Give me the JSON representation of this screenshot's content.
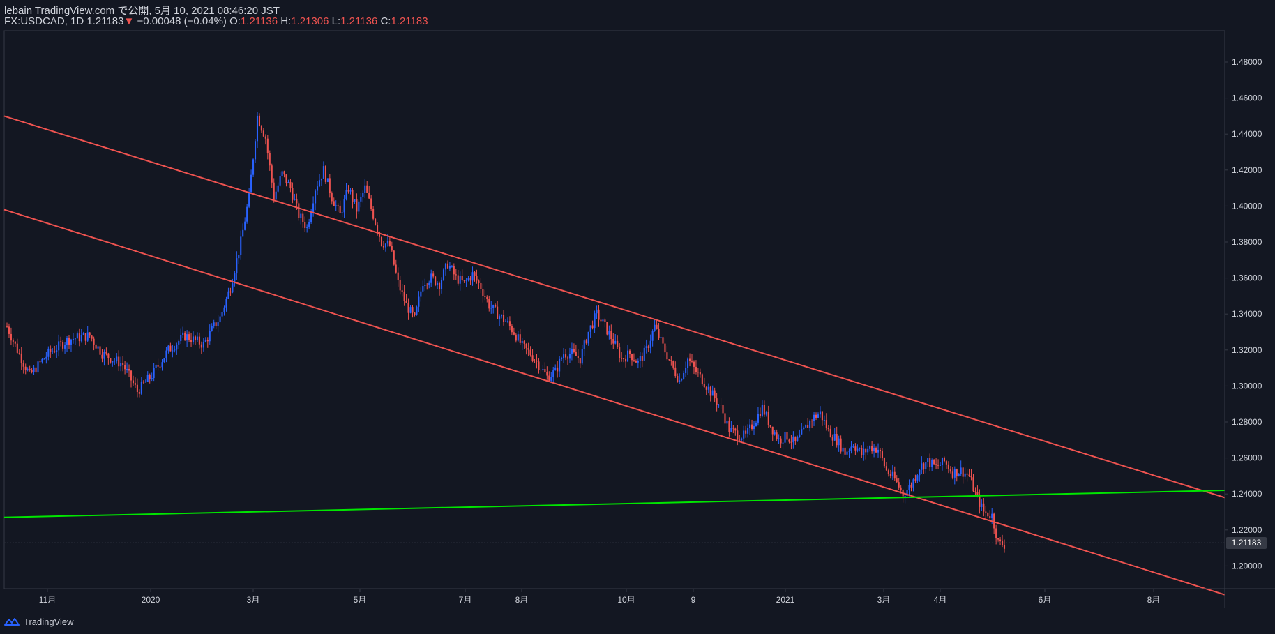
{
  "header": {
    "publish_line": "lebain TradingView.com で公開, 5月 10, 2021 08:46:20 JST",
    "symbol": "FX:USDCAD, 1D",
    "last": "1.21183",
    "change_arrow": "▼",
    "change": "−0.00048 (−0.04%)",
    "o_label": "O:",
    "o_value": "1.21136",
    "h_label": "H:",
    "h_value": "1.21306",
    "l_label": "L:",
    "l_value": "1.21136",
    "c_label": "C:",
    "c_value": "1.21183"
  },
  "footer": {
    "brand": "TradingView"
  },
  "colors": {
    "background": "#131722",
    "up": "#2962ff",
    "down": "#ef5350",
    "channel": "#ef5350",
    "support": "#00e600",
    "axis_text": "#d1d4dc"
  },
  "chart_data": {
    "type": "candlestick",
    "yaxis_side": "right",
    "ylim": [
      1.18,
      1.49
    ],
    "y_ticks": [
      "1.48000",
      "1.46000",
      "1.44000",
      "1.42000",
      "1.40000",
      "1.38000",
      "1.36000",
      "1.34000",
      "1.32000",
      "1.30000",
      "1.28000",
      "1.26000",
      "1.24000",
      "1.22000",
      "1.20000"
    ],
    "last_price_label": "1.21183",
    "x_ticks": [
      "11月",
      "2020",
      "3月",
      "5月",
      "7月",
      "8月",
      "10月",
      "9",
      "2021",
      "3月",
      "4月",
      "6月",
      "8月"
    ],
    "trend_lines": [
      {
        "name": "channel-upper",
        "color": "#ef5350",
        "start_price": 1.45,
        "end_price": 1.238
      },
      {
        "name": "channel-lower",
        "color": "#ef5350",
        "start_price": 1.398,
        "end_price": 1.184
      },
      {
        "name": "support",
        "color": "#00e600",
        "start_price": 1.227,
        "end_price": 1.242
      }
    ],
    "close_path": [
      [
        0,
        1.333
      ],
      [
        5,
        1.32
      ],
      [
        11,
        1.306
      ],
      [
        20,
        1.318
      ],
      [
        30,
        1.326
      ],
      [
        40,
        1.328
      ],
      [
        46,
        1.318
      ],
      [
        56,
        1.312
      ],
      [
        63,
        1.297
      ],
      [
        70,
        1.306
      ],
      [
        78,
        1.32
      ],
      [
        86,
        1.328
      ],
      [
        95,
        1.323
      ],
      [
        100,
        1.333
      ],
      [
        103,
        1.338
      ],
      [
        108,
        1.355
      ],
      [
        113,
        1.38
      ],
      [
        117,
        1.405
      ],
      [
        121,
        1.45
      ],
      [
        125,
        1.438
      ],
      [
        129,
        1.405
      ],
      [
        133,
        1.418
      ],
      [
        137,
        1.41
      ],
      [
        141,
        1.395
      ],
      [
        145,
        1.388
      ],
      [
        149,
        1.41
      ],
      [
        153,
        1.42
      ],
      [
        157,
        1.405
      ],
      [
        161,
        1.395
      ],
      [
        165,
        1.41
      ],
      [
        169,
        1.398
      ],
      [
        173,
        1.41
      ],
      [
        177,
        1.395
      ],
      [
        181,
        1.38
      ],
      [
        185,
        1.378
      ],
      [
        189,
        1.357
      ],
      [
        193,
        1.345
      ],
      [
        197,
        1.337
      ],
      [
        201,
        1.358
      ],
      [
        205,
        1.36
      ],
      [
        209,
        1.357
      ],
      [
        213,
        1.368
      ],
      [
        217,
        1.36
      ],
      [
        221,
        1.357
      ],
      [
        225,
        1.362
      ],
      [
        229,
        1.355
      ],
      [
        233,
        1.345
      ],
      [
        237,
        1.34
      ],
      [
        241,
        1.336
      ],
      [
        245,
        1.33
      ],
      [
        249,
        1.322
      ],
      [
        253,
        1.318
      ],
      [
        257,
        1.312
      ],
      [
        261,
        1.305
      ],
      [
        265,
        1.308
      ],
      [
        269,
        1.318
      ],
      [
        273,
        1.318
      ],
      [
        277,
        1.315
      ],
      [
        281,
        1.33
      ],
      [
        285,
        1.34
      ],
      [
        289,
        1.333
      ],
      [
        293,
        1.325
      ],
      [
        297,
        1.315
      ],
      [
        301,
        1.318
      ],
      [
        305,
        1.313
      ],
      [
        309,
        1.32
      ],
      [
        313,
        1.333
      ],
      [
        317,
        1.322
      ],
      [
        321,
        1.312
      ],
      [
        325,
        1.303
      ],
      [
        329,
        1.315
      ],
      [
        333,
        1.308
      ],
      [
        337,
        1.302
      ],
      [
        341,
        1.295
      ],
      [
        345,
        1.288
      ],
      [
        349,
        1.276
      ],
      [
        353,
        1.273
      ],
      [
        357,
        1.272
      ],
      [
        361,
        1.28
      ],
      [
        365,
        1.288
      ],
      [
        369,
        1.278
      ],
      [
        373,
        1.27
      ],
      [
        377,
        1.272
      ],
      [
        381,
        1.268
      ],
      [
        385,
        1.275
      ],
      [
        389,
        1.282
      ],
      [
        393,
        1.285
      ],
      [
        397,
        1.275
      ],
      [
        401,
        1.27
      ],
      [
        405,
        1.263
      ],
      [
        409,
        1.268
      ],
      [
        413,
        1.262
      ],
      [
        417,
        1.266
      ],
      [
        421,
        1.265
      ],
      [
        425,
        1.253
      ],
      [
        429,
        1.248
      ],
      [
        433,
        1.24
      ],
      [
        437,
        1.245
      ],
      [
        441,
        1.255
      ],
      [
        445,
        1.258
      ],
      [
        449,
        1.255
      ],
      [
        453,
        1.258
      ],
      [
        457,
        1.252
      ],
      [
        461,
        1.253
      ],
      [
        465,
        1.25
      ],
      [
        468,
        1.24
      ],
      [
        472,
        1.23
      ],
      [
        476,
        1.228
      ],
      [
        479,
        1.213
      ],
      [
        482,
        1.2118
      ]
    ]
  }
}
